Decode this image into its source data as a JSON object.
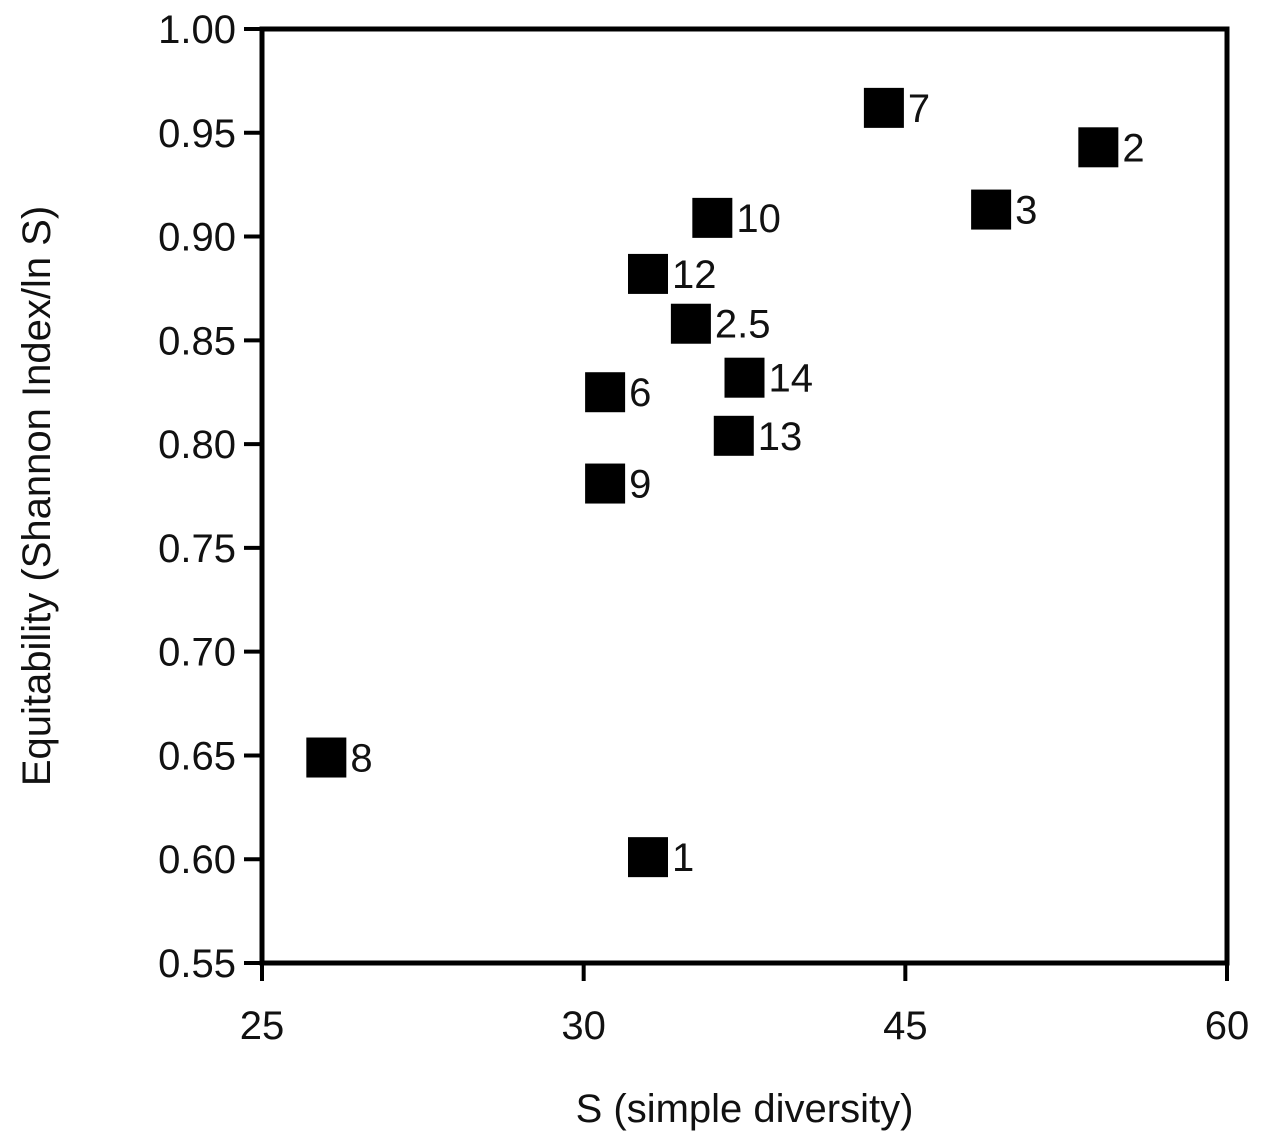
{
  "chart_data": {
    "type": "scatter",
    "title": "",
    "xlabel": "S (simple diversity)",
    "ylabel": "Equitability (Shannon Index/ln S)",
    "x_ticks": [
      "25",
      "30",
      "45",
      "60"
    ],
    "y_ticks": [
      "0.55",
      "0.60",
      "0.65",
      "0.70",
      "0.75",
      "0.80",
      "0.85",
      "0.90",
      "0.95",
      "1.00"
    ],
    "ylim": [
      0.55,
      1.0
    ],
    "marker": "square",
    "marker_color": "#000000",
    "grid": false,
    "points": [
      {
        "label": "7",
        "x": 44,
        "y": 0.962
      },
      {
        "label": "2",
        "x": 54,
        "y": 0.943
      },
      {
        "label": "3",
        "x": 49,
        "y": 0.913
      },
      {
        "label": "10",
        "x": 36,
        "y": 0.909
      },
      {
        "label": "12",
        "x": 33,
        "y": 0.882
      },
      {
        "label": "2.5",
        "x": 35,
        "y": 0.858
      },
      {
        "label": "14",
        "x": 37.5,
        "y": 0.832
      },
      {
        "label": "6",
        "x": 31,
        "y": 0.825
      },
      {
        "label": "13",
        "x": 37,
        "y": 0.804
      },
      {
        "label": "9",
        "x": 31,
        "y": 0.781
      },
      {
        "label": "8",
        "x": 26,
        "y": 0.649
      },
      {
        "label": "1",
        "x": 33,
        "y": 0.601
      }
    ]
  }
}
